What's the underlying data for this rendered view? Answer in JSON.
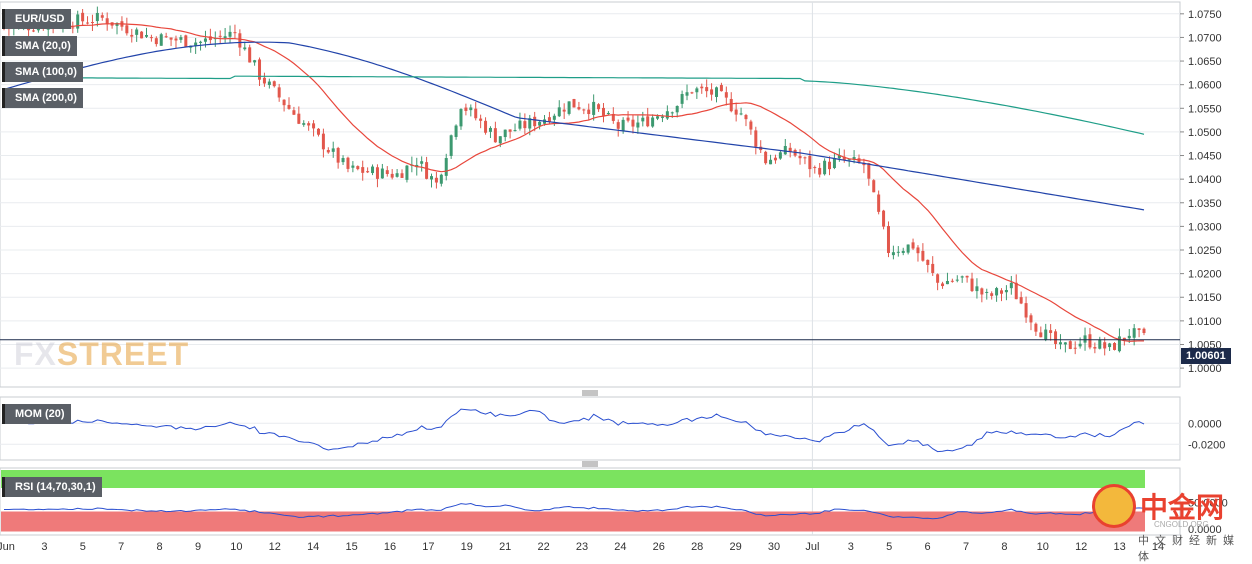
{
  "chart_data": {
    "type": "candlestick",
    "symbol": "EUR/USD",
    "last_price": "1.00601",
    "indicators": {
      "sma20": "SMA (20,0)",
      "sma100": "SMA (100,0)",
      "sma200": "SMA (200,0)",
      "mom": "MOM (20)",
      "rsi": "RSI (14,70,30,1)"
    },
    "watermark": {
      "part1": "FX",
      "part2": "STREET"
    },
    "price_axis": {
      "range": [
        0.996,
        1.0775
      ],
      "ticks": [
        "1.0750",
        "1.0700",
        "1.0650",
        "1.0600",
        "1.0550",
        "1.0500",
        "1.0450",
        "1.0400",
        "1.0350",
        "1.0300",
        "1.0250",
        "1.0200",
        "1.0150",
        "1.0100",
        "1.0050",
        "1.0000"
      ]
    },
    "mom_axis": {
      "range": [
        -0.035,
        0.025
      ],
      "ticks": [
        "0.0000",
        "-0.0200"
      ]
    },
    "rsi_axis": {
      "ticks": [
        "50.0000",
        "0.0000"
      ]
    },
    "x_labels": [
      "Jun",
      "3",
      "5",
      "7",
      "8",
      "9",
      "10",
      "12",
      "14",
      "15",
      "16",
      "17",
      "19",
      "21",
      "22",
      "23",
      "24",
      "26",
      "28",
      "29",
      "30",
      "Jul",
      "3",
      "5",
      "6",
      "7",
      "8",
      "10",
      "12",
      "13",
      "14"
    ],
    "colors": {
      "up": "#3d9970",
      "down": "#e2574c",
      "sma20": "#e8473c",
      "sma100": "#2244aa",
      "sma200": "#1f9e88",
      "mom": "#2a4fd0",
      "rsi": "#2a4fd0"
    }
  },
  "logo": {
    "big": "中金网",
    "small": "CNGOLD.ORG",
    "sub": "中文财经新媒体"
  }
}
